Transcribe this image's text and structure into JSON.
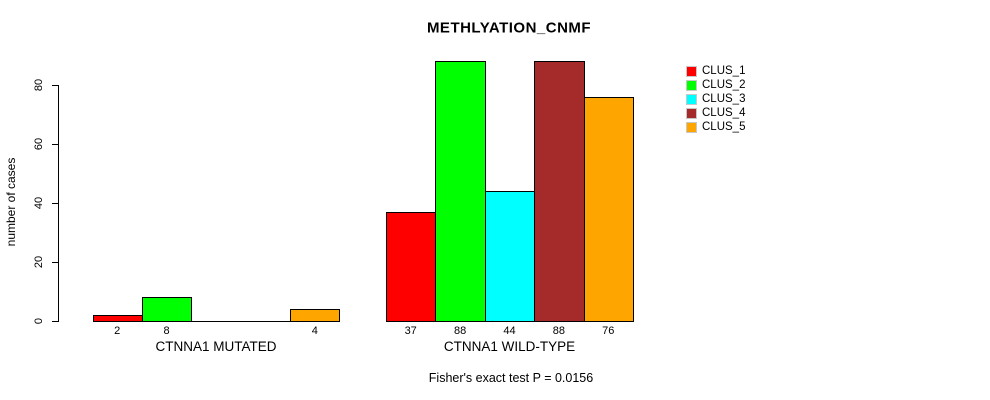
{
  "chart_data": {
    "type": "bar",
    "title": "METHLYATION_CNMF",
    "ylabel": "number of cases",
    "ylim": [
      0,
      88
    ],
    "yticks": [
      0,
      20,
      40,
      60,
      80
    ],
    "grid": false,
    "legend_position": "right",
    "categories": [
      "CTNNA1 MUTATED",
      "CTNNA1 WILD-TYPE"
    ],
    "series": [
      {
        "name": "CLUS_1",
        "color": "#ff0000",
        "values": [
          2,
          37
        ]
      },
      {
        "name": "CLUS_2",
        "color": "#00ff00",
        "values": [
          8,
          88
        ]
      },
      {
        "name": "CLUS_3",
        "color": "#00ffff",
        "values": [
          0,
          44
        ]
      },
      {
        "name": "CLUS_4",
        "color": "#a52a2a",
        "values": [
          0,
          88
        ]
      },
      {
        "name": "CLUS_5",
        "color": "#ffa500",
        "values": [
          4,
          76
        ]
      }
    ],
    "bar_value_labels": {
      "show": true,
      "hide_zero": true
    },
    "annotation": "Fisher's exact test P = 0.0156"
  }
}
